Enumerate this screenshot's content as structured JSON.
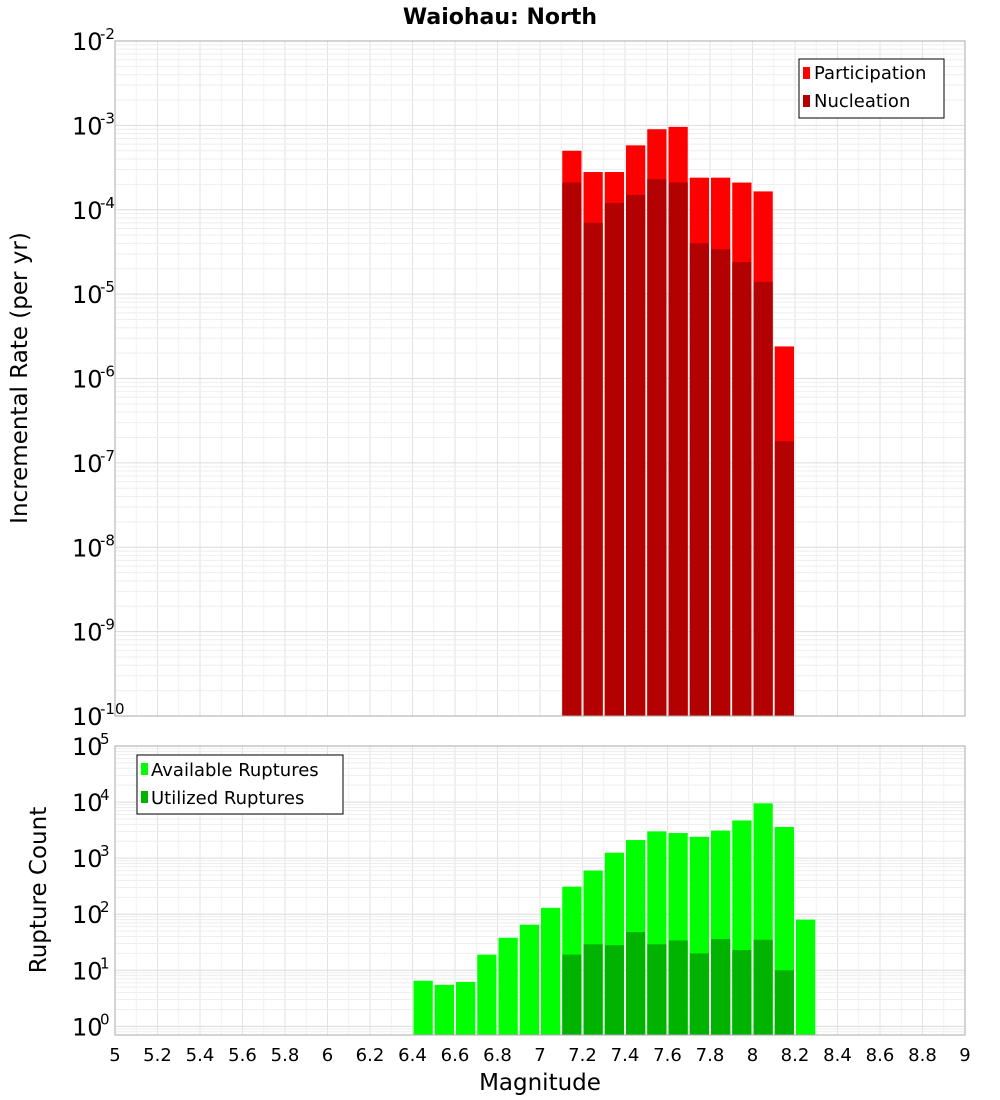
{
  "title": "Waiohau: North",
  "xlabel": "Magnitude",
  "chart_data": [
    {
      "type": "bar",
      "ylabel": "Incremental Rate (per yr)",
      "yscale": "log",
      "ylim": [
        1e-10,
        0.01
      ],
      "xlim": [
        5,
        9
      ],
      "bin_width": 0.1,
      "legend": {
        "position": "top-right",
        "entries": [
          "Participation",
          "Nucleation"
        ]
      },
      "colors": {
        "Participation": "#ff0000",
        "Nucleation": "#b30000"
      },
      "x": [
        7.15,
        7.25,
        7.35,
        7.45,
        7.55,
        7.65,
        7.75,
        7.85,
        7.95,
        8.05,
        8.15
      ],
      "series": [
        {
          "name": "Participation",
          "values": [
            0.0005,
            0.00028,
            0.00028,
            0.00058,
            0.0009,
            0.00096,
            0.00024,
            0.00024,
            0.00021,
            0.000165,
            2.4e-06
          ]
        },
        {
          "name": "Nucleation",
          "values": [
            0.00021,
            7e-05,
            0.00012,
            0.00015,
            0.00023,
            0.00021,
            4e-05,
            3.4e-05,
            2.4e-05,
            1.4e-05,
            1.8e-07
          ]
        }
      ]
    },
    {
      "type": "bar",
      "ylabel": "Rupture Count",
      "yscale": "log",
      "ylim": [
        0.7,
        100000.0
      ],
      "xlim": [
        5,
        9
      ],
      "bin_width": 0.1,
      "legend": {
        "position": "top-left",
        "entries": [
          "Available Ruptures",
          "Utilized Ruptures"
        ]
      },
      "colors": {
        "Available Ruptures": "#00ff00",
        "Utilized Ruptures": "#00b300"
      },
      "x": [
        6.45,
        6.55,
        6.65,
        6.75,
        6.85,
        6.95,
        7.05,
        7.15,
        7.25,
        7.35,
        7.45,
        7.55,
        7.65,
        7.75,
        7.85,
        7.95,
        8.05,
        8.15,
        8.25
      ],
      "series": [
        {
          "name": "Available Ruptures",
          "values": [
            6.5,
            5.5,
            6.2,
            19,
            38,
            65,
            130,
            310,
            600,
            1250,
            2100,
            3000,
            2800,
            2400,
            3100,
            4700,
            9500,
            3600,
            80
          ]
        },
        {
          "name": "Utilized Ruptures",
          "values": [
            null,
            null,
            null,
            null,
            null,
            null,
            null,
            19,
            29,
            28,
            48,
            29,
            34,
            20,
            36,
            23,
            35,
            10,
            null
          ]
        }
      ]
    }
  ],
  "x_ticks": [
    "5",
    "5.2",
    "5.4",
    "5.6",
    "5.8",
    "6",
    "6.2",
    "6.4",
    "6.6",
    "6.8",
    "7",
    "7.2",
    "7.4",
    "7.6",
    "7.8",
    "8",
    "8.2",
    "8.4",
    "8.6",
    "8.8",
    "9"
  ],
  "top_y_ticks": [
    "-10",
    "-9",
    "-8",
    "-7",
    "-6",
    "-5",
    "-4",
    "-3",
    "-2"
  ],
  "bottom_y_ticks": [
    "0",
    "1",
    "2",
    "3",
    "4",
    "5"
  ]
}
